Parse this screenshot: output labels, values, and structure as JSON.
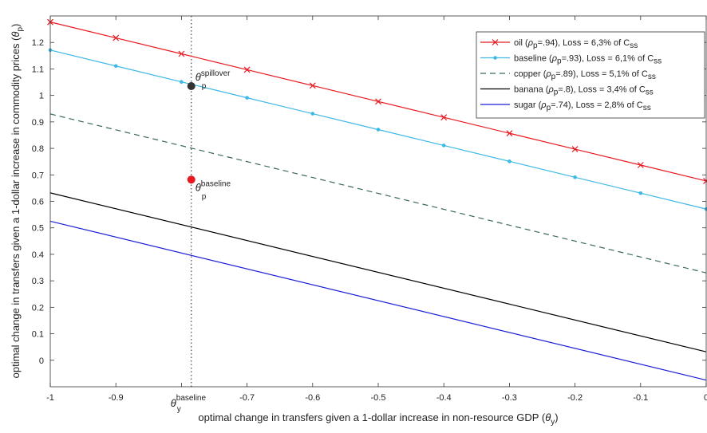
{
  "chart_data": {
    "type": "line",
    "xlabel": "optimal change in transfers given a 1-dollar increase in non-resource GDP",
    "xlabel_symbol": "θ",
    "xlabel_symbol_sub": "y",
    "ylabel": "optimal change in transfers given a 1-dollar increase in commodity prices",
    "ylabel_symbol": "θ",
    "ylabel_symbol_sub": "p",
    "xlim": [
      -1,
      0
    ],
    "ylim": [
      -0.1,
      1.3
    ],
    "x_ticks": [
      -1,
      -0.9,
      -0.8,
      -0.7,
      -0.6,
      -0.5,
      -0.4,
      -0.3,
      -0.2,
      -0.1,
      0
    ],
    "x_tick_labels": [
      "-1",
      "-0.9",
      "",
      "-0.7",
      "-0.6",
      "-0.5",
      "-0.4",
      "-0.3",
      "-0.2",
      "-0.1",
      "0"
    ],
    "y_ticks": [
      0,
      0.1,
      0.2,
      0.3,
      0.4,
      0.5,
      0.6,
      0.7,
      0.8,
      0.9,
      1,
      1.1,
      1.2
    ],
    "y_tick_labels": [
      "0",
      "0.1",
      "0.2",
      "0.3",
      "0.4",
      "0.5",
      "0.6",
      "0.7",
      "0.8",
      "0.9",
      "1",
      "1.1",
      "1.2"
    ],
    "grid": false,
    "legend_position": "top-right",
    "series": [
      {
        "name": "oil",
        "rho": ".94",
        "loss": "6,3%",
        "color": "#e8191f",
        "dash": "solid",
        "marker": "x",
        "x": [
          -1,
          -0.9,
          -0.8,
          -0.7,
          -0.6,
          -0.5,
          -0.4,
          -0.3,
          -0.2,
          -0.1,
          0
        ],
        "y": [
          1.277,
          1.217,
          1.157,
          1.097,
          1.037,
          0.977,
          0.917,
          0.857,
          0.797,
          0.737,
          0.677
        ]
      },
      {
        "name": "baseline",
        "rho": ".93",
        "loss": "6,1%",
        "color": "#3db8e6",
        "dash": "solid",
        "marker": "dot",
        "x": [
          -1,
          -0.9,
          -0.8,
          -0.7,
          -0.6,
          -0.5,
          -0.4,
          -0.3,
          -0.2,
          -0.1,
          0
        ],
        "y": [
          1.171,
          1.111,
          1.051,
          0.991,
          0.931,
          0.871,
          0.811,
          0.751,
          0.691,
          0.631,
          0.571
        ]
      },
      {
        "name": "copper",
        "rho": ".89",
        "loss": "5,1%",
        "color": "#3a6b52",
        "dash": "dashed",
        "marker": "none",
        "x": [
          -1,
          0
        ],
        "y": [
          0.93,
          0.33
        ]
      },
      {
        "name": "banana",
        "rho": ".8",
        "loss": "3,4%",
        "color": "#000000",
        "dash": "solid",
        "marker": "none",
        "x": [
          -1,
          0
        ],
        "y": [
          0.632,
          0.032
        ]
      },
      {
        "name": "sugar",
        "rho": ".74",
        "loss": "2,8%",
        "color": "#1a1fd6",
        "dash": "solid",
        "marker": "none",
        "x": [
          -1,
          0
        ],
        "y": [
          0.525,
          -0.075
        ]
      }
    ],
    "legend_template": {
      "rho_symbol": "ρ",
      "rho_sub": "p",
      "loss_label": "Loss =",
      "of_label": "of C",
      "of_sub": "ss"
    },
    "vertical_line": {
      "x": -0.785,
      "style": "dotted",
      "label": "θ",
      "label_sup": "baseline",
      "label_sub": "y"
    },
    "points": [
      {
        "x": -0.785,
        "y": 1.035,
        "color": "#333333",
        "label": "θ",
        "label_sup": "spillover",
        "label_sub": "p"
      },
      {
        "x": -0.785,
        "y": 0.682,
        "color": "#e8191f",
        "label": "θ",
        "label_sup": "baseline",
        "label_sub": "p"
      }
    ]
  }
}
